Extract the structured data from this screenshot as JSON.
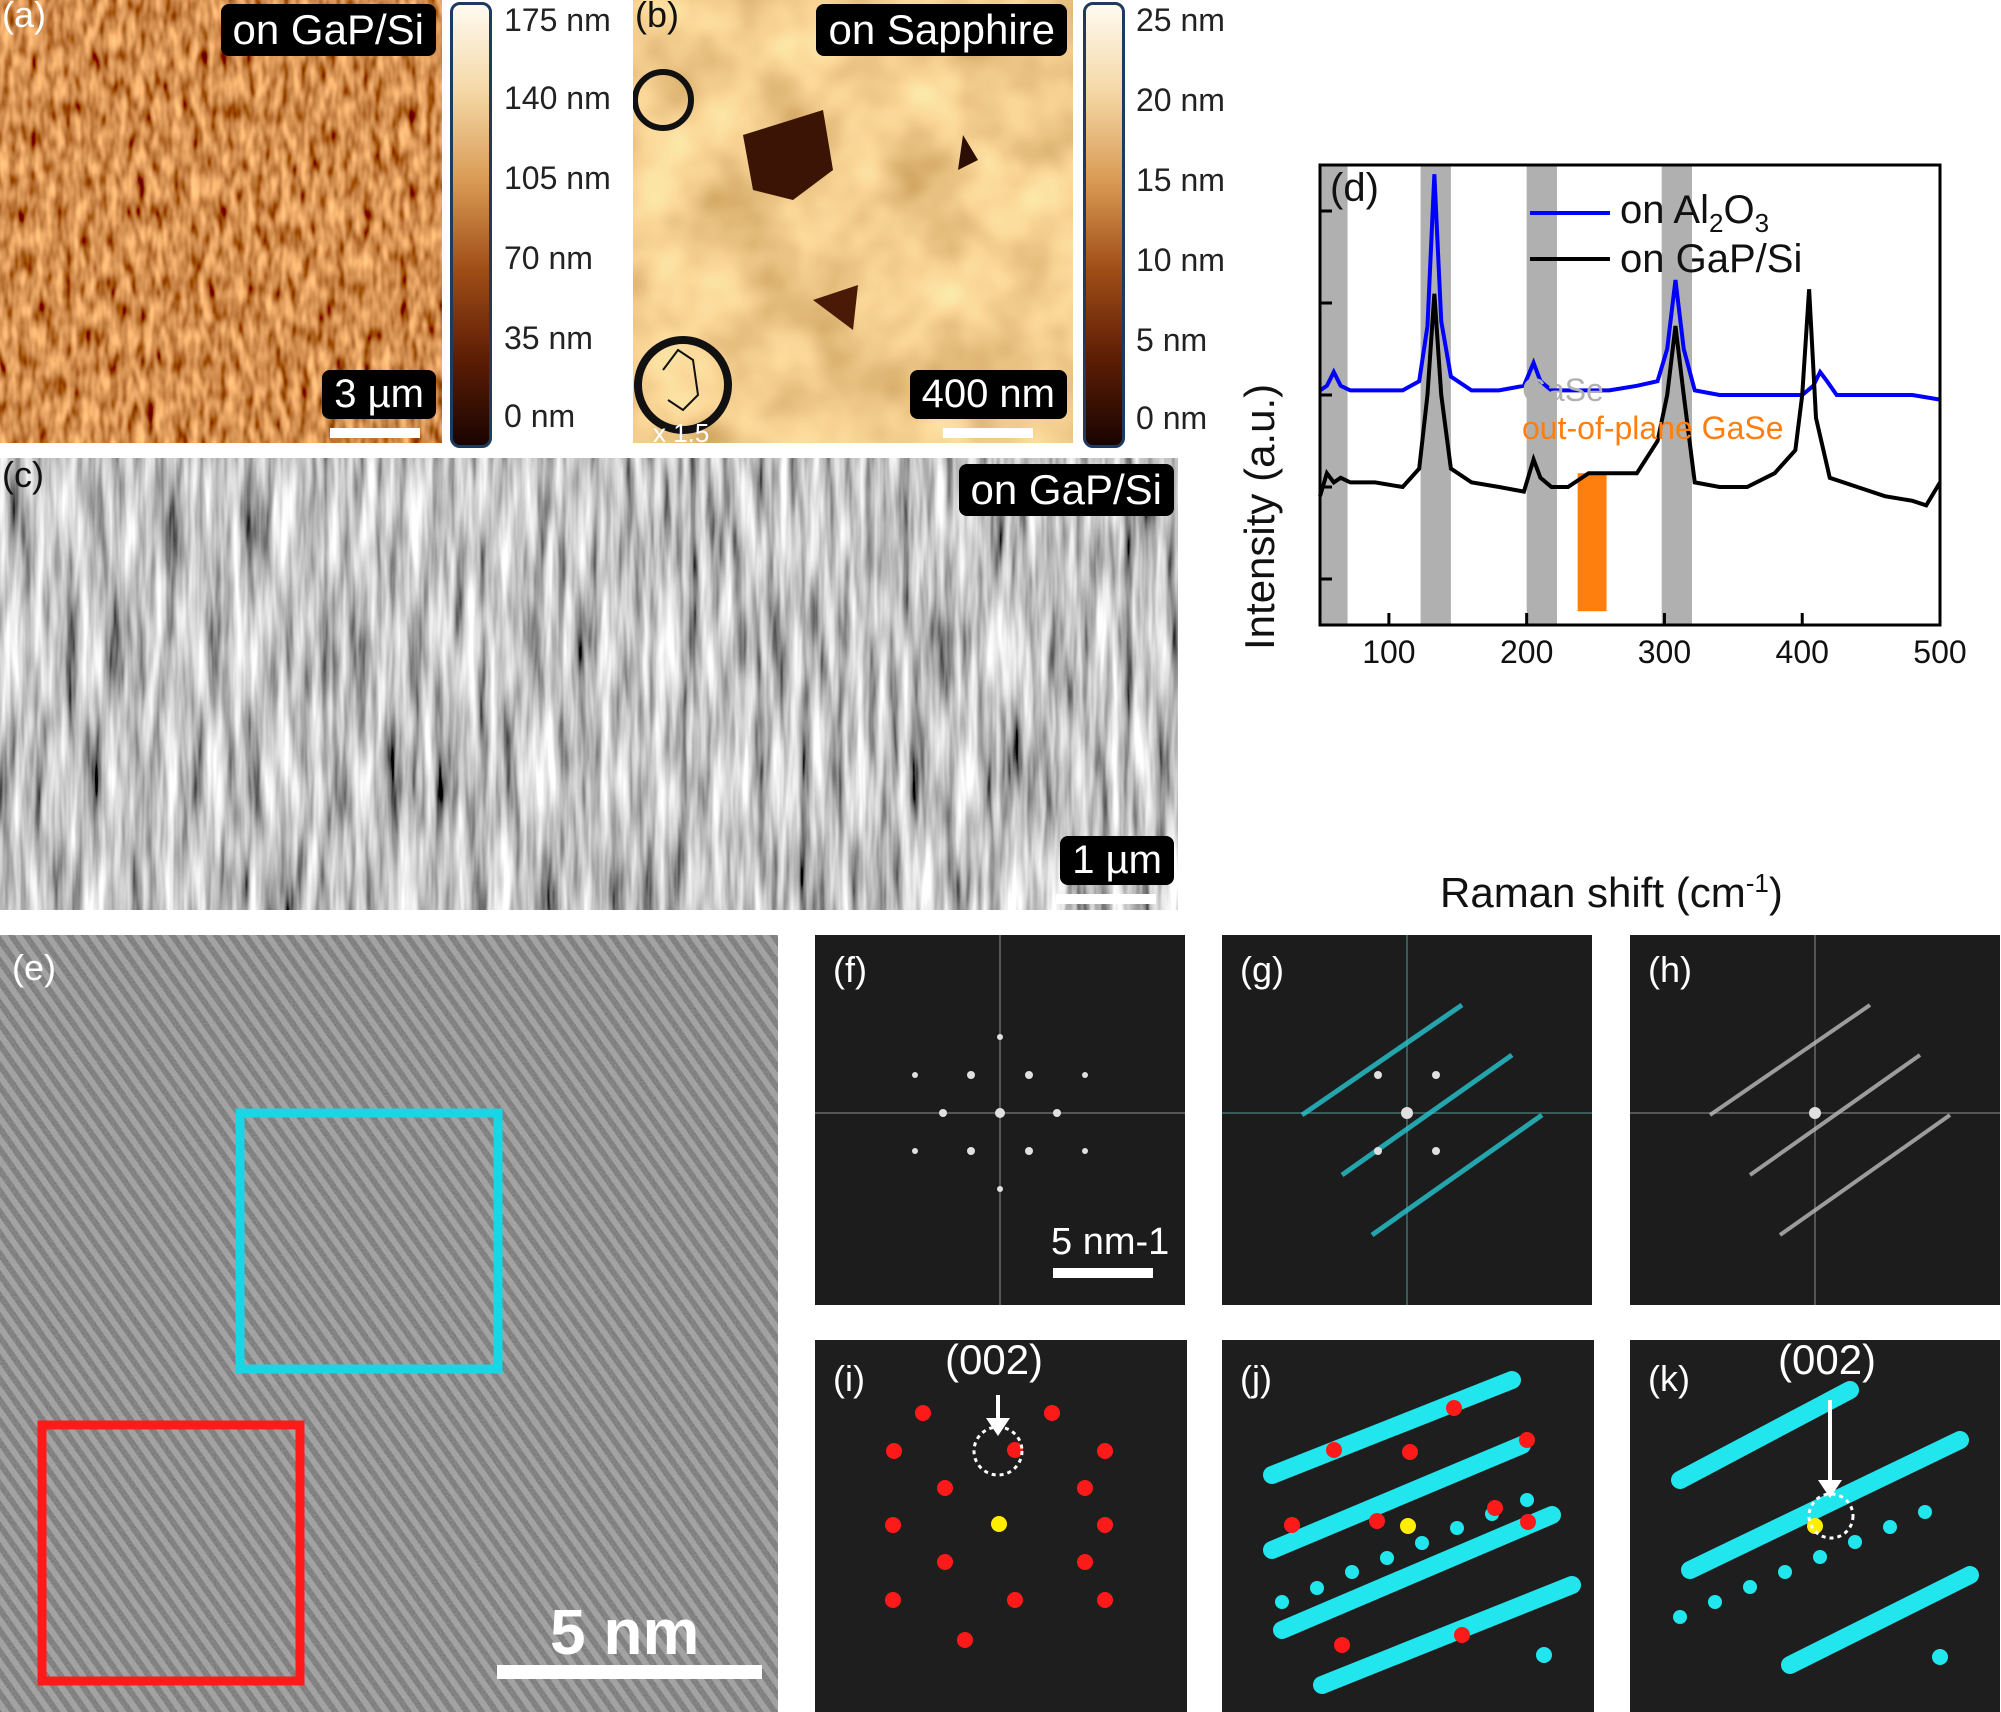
{
  "panels": {
    "a": {
      "label": "(a)",
      "title": "on GaP/Si",
      "scalebar": "3 µm",
      "colorbar": [
        "175 nm",
        "140 nm",
        "105 nm",
        "70 nm",
        "35 nm",
        "0 nm"
      ]
    },
    "b": {
      "label": "(b)",
      "title": "on Sapphire",
      "scalebar": "400 nm",
      "inset_note": "x 1.5",
      "colorbar": [
        "25 nm",
        "20 nm",
        "15 nm",
        "10 nm",
        "5 nm",
        "0 nm"
      ]
    },
    "c": {
      "label": "(c)",
      "title": "on GaP/Si",
      "scalebar": "1 µm"
    },
    "d": {
      "label": "(d)"
    },
    "e": {
      "label": "(e)",
      "scalebar": "5 nm"
    },
    "f": {
      "label": "(f)",
      "scalebar": "5 nm-1"
    },
    "g": {
      "label": "(g)"
    },
    "h": {
      "label": "(h)"
    },
    "i": {
      "label": "(i)",
      "annotation": "(002)"
    },
    "j": {
      "label": "(j)"
    },
    "k": {
      "label": "(k)",
      "annotation": "(002)"
    }
  },
  "chart_data": {
    "type": "line",
    "title": "",
    "xlabel": "Raman shift (cm-1)",
    "ylabel": "Intensity (a.u.)",
    "xlim": [
      50,
      500
    ],
    "ylim": [
      0,
      1
    ],
    "xticks": [
      100,
      200,
      300,
      400,
      500
    ],
    "series": [
      {
        "name": "on Al2O3",
        "color": "#0000ff",
        "x": [
          50,
          55,
          60,
          65,
          72,
          90,
          110,
          122,
          128,
          133,
          138,
          145,
          160,
          180,
          198,
          205,
          210,
          218,
          230,
          260,
          280,
          295,
          302,
          308,
          314,
          322,
          340,
          380,
          400,
          408,
          413,
          418,
          425,
          450,
          480,
          500
        ],
        "y": [
          0.51,
          0.52,
          0.55,
          0.52,
          0.51,
          0.51,
          0.51,
          0.53,
          0.65,
          0.98,
          0.66,
          0.54,
          0.51,
          0.51,
          0.52,
          0.57,
          0.53,
          0.51,
          0.51,
          0.51,
          0.52,
          0.53,
          0.6,
          0.75,
          0.6,
          0.51,
          0.5,
          0.5,
          0.5,
          0.52,
          0.55,
          0.53,
          0.5,
          0.5,
          0.5,
          0.49
        ]
      },
      {
        "name": "on GaP/Si",
        "color": "#000000",
        "x": [
          50,
          55,
          60,
          65,
          72,
          90,
          110,
          122,
          128,
          133,
          138,
          145,
          160,
          180,
          198,
          205,
          210,
          218,
          230,
          245,
          260,
          280,
          295,
          302,
          308,
          314,
          322,
          340,
          360,
          380,
          395,
          400,
          405,
          410,
          420,
          440,
          460,
          480,
          490,
          500
        ],
        "y": [
          0.28,
          0.33,
          0.31,
          0.32,
          0.31,
          0.31,
          0.3,
          0.34,
          0.5,
          0.72,
          0.5,
          0.34,
          0.31,
          0.3,
          0.29,
          0.36,
          0.32,
          0.3,
          0.3,
          0.33,
          0.33,
          0.33,
          0.4,
          0.5,
          0.65,
          0.5,
          0.31,
          0.3,
          0.3,
          0.33,
          0.38,
          0.5,
          0.73,
          0.45,
          0.32,
          0.3,
          0.28,
          0.27,
          0.26,
          0.31
        ]
      }
    ],
    "bands": [
      {
        "name": "GaSe",
        "color": "#b0b0b0",
        "ranges": [
          [
            50,
            70
          ],
          [
            123,
            145
          ],
          [
            200,
            222
          ],
          [
            298,
            320
          ]
        ]
      },
      {
        "name": "out-of-plane GaSe",
        "color": "#ff7f0e",
        "ranges": [
          [
            237,
            258
          ]
        ]
      }
    ],
    "legend": {
      "position": "top-right",
      "entries": [
        "on Al2O3",
        "on GaP/Si"
      ]
    }
  }
}
